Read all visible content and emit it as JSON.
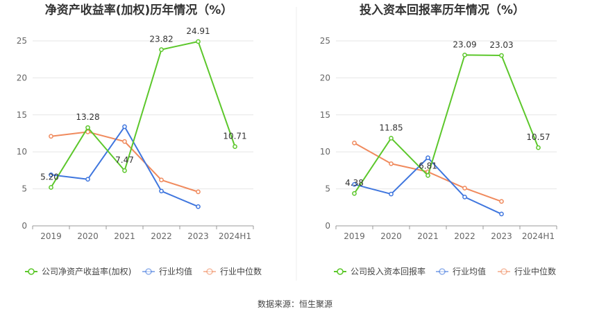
{
  "source_note": "数据来源：恒生聚源",
  "colors": {
    "company": "#5cc72b",
    "industry_avg": "#3f76de",
    "industry_median": "#f08a5d",
    "grid": "#e6e6e6",
    "axis": "#999999"
  },
  "chart_data": [
    {
      "type": "line",
      "title": "净资产收益率(加权)历年情况（%）",
      "categories": [
        "2019",
        "2020",
        "2021",
        "2022",
        "2023",
        "2024H1"
      ],
      "ylim": [
        0,
        25
      ],
      "yticks": [
        "0",
        "5",
        "10",
        "15",
        "20",
        "25"
      ],
      "grid": true,
      "legend_position": "bottom",
      "series": [
        {
          "name": "公司净资产收益率(加权)",
          "color_key": "company",
          "values": [
            5.2,
            13.28,
            7.47,
            23.82,
            24.91,
            10.71
          ],
          "labels": [
            "5.20",
            "13.28",
            "7.47",
            "23.82",
            "24.91",
            "10.71"
          ]
        },
        {
          "name": "行业均值",
          "color_key": "industry_avg",
          "values": [
            6.9,
            6.3,
            13.4,
            4.7,
            2.6,
            null
          ]
        },
        {
          "name": "行业中位数",
          "color_key": "industry_median",
          "values": [
            12.1,
            12.7,
            11.4,
            6.2,
            4.6,
            null
          ]
        }
      ]
    },
    {
      "type": "line",
      "title": "投入资本回报率历年情况（%）",
      "categories": [
        "2019",
        "2020",
        "2021",
        "2022",
        "2023",
        "2024H1"
      ],
      "ylim": [
        0,
        25
      ],
      "yticks": [
        "0",
        "5",
        "10",
        "15",
        "20",
        "25"
      ],
      "grid": true,
      "legend_position": "bottom",
      "series": [
        {
          "name": "公司投入资本回报率",
          "color_key": "company",
          "values": [
            4.38,
            11.85,
            6.81,
            23.09,
            23.03,
            10.57
          ],
          "labels": [
            "4.38",
            "11.85",
            "6.81",
            "23.09",
            "23.03",
            "10.57"
          ]
        },
        {
          "name": "行业均值",
          "color_key": "industry_avg",
          "values": [
            5.6,
            4.3,
            9.2,
            3.9,
            1.6,
            null
          ]
        },
        {
          "name": "行业中位数",
          "color_key": "industry_median",
          "values": [
            11.2,
            8.4,
            7.3,
            5.1,
            3.3,
            null
          ]
        }
      ]
    }
  ]
}
